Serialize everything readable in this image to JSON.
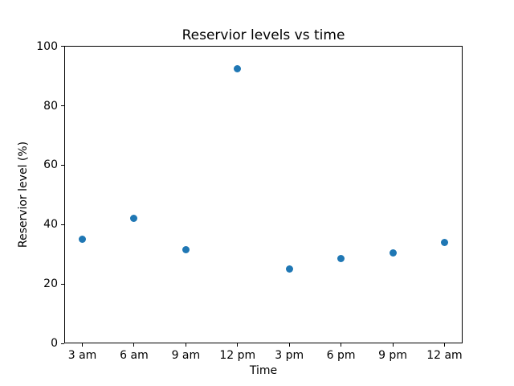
{
  "chart_data": {
    "type": "scatter",
    "title": "Reservior levels vs time",
    "xlabel": "Time",
    "ylabel": "Reservior level (%)",
    "categories": [
      "3 am",
      "6 am",
      "9 am",
      "12 pm",
      "3 pm",
      "6 pm",
      "9 pm",
      "12 am"
    ],
    "values": [
      35,
      42,
      31.5,
      92.5,
      25,
      28.5,
      30.5,
      34
    ],
    "yticks": [
      0,
      20,
      40,
      60,
      80,
      100
    ],
    "ylim": [
      0,
      100
    ],
    "grid": false,
    "legend_visible": false,
    "marker": "circle",
    "colors": {
      "point": "#1f77b4",
      "frame": "#000000",
      "text": "#000000",
      "background": "#ffffff"
    }
  }
}
